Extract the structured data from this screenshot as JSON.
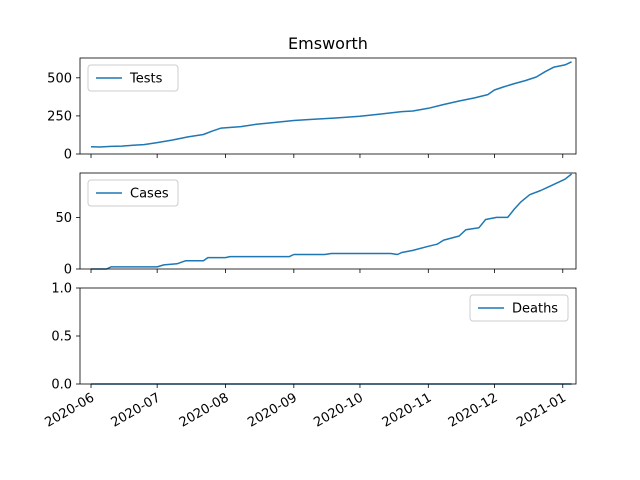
{
  "chart_data": {
    "type": "line",
    "title": "Emsworth",
    "line_color": "#1f77b4",
    "x_ticks": [
      "2020-06",
      "2020-07",
      "2020-08",
      "2020-09",
      "2020-10",
      "2020-11",
      "2020-12",
      "2021-01"
    ],
    "xlim": [
      "2020-05-27",
      "2021-01-07"
    ],
    "panels": [
      {
        "series_name": "Tests",
        "ylim": [
          0,
          630
        ],
        "y_ticks": [
          0,
          250,
          500
        ],
        "y_tick_labels": [
          "0",
          "250",
          "500"
        ],
        "legend_position": "upper-left",
        "points": [
          [
            "2020-06-01",
            48
          ],
          [
            "2020-06-05",
            46
          ],
          [
            "2020-06-10",
            50
          ],
          [
            "2020-06-15",
            52
          ],
          [
            "2020-06-20",
            57
          ],
          [
            "2020-06-25",
            62
          ],
          [
            "2020-07-01",
            75
          ],
          [
            "2020-07-08",
            92
          ],
          [
            "2020-07-15",
            112
          ],
          [
            "2020-07-22",
            128
          ],
          [
            "2020-07-26",
            150
          ],
          [
            "2020-07-30",
            170
          ],
          [
            "2020-08-08",
            180
          ],
          [
            "2020-08-15",
            195
          ],
          [
            "2020-08-22",
            205
          ],
          [
            "2020-09-01",
            220
          ],
          [
            "2020-09-10",
            228
          ],
          [
            "2020-09-20",
            236
          ],
          [
            "2020-10-01",
            248
          ],
          [
            "2020-10-10",
            262
          ],
          [
            "2020-10-20",
            278
          ],
          [
            "2020-10-25",
            282
          ],
          [
            "2020-11-01",
            300
          ],
          [
            "2020-11-08",
            325
          ],
          [
            "2020-11-15",
            348
          ],
          [
            "2020-11-22",
            368
          ],
          [
            "2020-11-28",
            390
          ],
          [
            "2020-12-01",
            420
          ],
          [
            "2020-12-05",
            440
          ],
          [
            "2020-12-10",
            462
          ],
          [
            "2020-12-15",
            482
          ],
          [
            "2020-12-20",
            505
          ],
          [
            "2020-12-24",
            540
          ],
          [
            "2020-12-28",
            570
          ],
          [
            "2021-01-02",
            585
          ],
          [
            "2021-01-05",
            605
          ]
        ]
      },
      {
        "series_name": "Cases",
        "ylim": [
          0,
          93
        ],
        "y_ticks": [
          0,
          50
        ],
        "y_tick_labels": [
          "0",
          "50"
        ],
        "legend_position": "upper-left",
        "points": [
          [
            "2020-06-01",
            0
          ],
          [
            "2020-06-08",
            0
          ],
          [
            "2020-06-10",
            2
          ],
          [
            "2020-07-01",
            2
          ],
          [
            "2020-07-04",
            4
          ],
          [
            "2020-07-10",
            5
          ],
          [
            "2020-07-14",
            8
          ],
          [
            "2020-07-22",
            8
          ],
          [
            "2020-07-24",
            11
          ],
          [
            "2020-08-01",
            11
          ],
          [
            "2020-08-03",
            12
          ],
          [
            "2020-08-30",
            12
          ],
          [
            "2020-09-01",
            14
          ],
          [
            "2020-09-15",
            14
          ],
          [
            "2020-09-18",
            15
          ],
          [
            "2020-10-15",
            15
          ],
          [
            "2020-10-18",
            14
          ],
          [
            "2020-10-20",
            16
          ],
          [
            "2020-10-25",
            18
          ],
          [
            "2020-11-01",
            22
          ],
          [
            "2020-11-05",
            24
          ],
          [
            "2020-11-08",
            28
          ],
          [
            "2020-11-15",
            32
          ],
          [
            "2020-11-18",
            38
          ],
          [
            "2020-11-24",
            40
          ],
          [
            "2020-11-27",
            48
          ],
          [
            "2020-12-02",
            50
          ],
          [
            "2020-12-07",
            50
          ],
          [
            "2020-12-10",
            58
          ],
          [
            "2020-12-13",
            65
          ],
          [
            "2020-12-17",
            72
          ],
          [
            "2020-12-22",
            76
          ],
          [
            "2020-12-26",
            80
          ],
          [
            "2021-01-02",
            87
          ],
          [
            "2021-01-05",
            92
          ]
        ]
      },
      {
        "series_name": "Deaths",
        "ylim": [
          0,
          1
        ],
        "y_ticks": [
          0,
          0.5,
          1
        ],
        "y_tick_labels": [
          "0.0",
          "0.5",
          "1.0"
        ],
        "legend_position": "upper-right",
        "points": [
          [
            "2020-06-01",
            0
          ],
          [
            "2021-01-05",
            0
          ]
        ]
      }
    ]
  }
}
